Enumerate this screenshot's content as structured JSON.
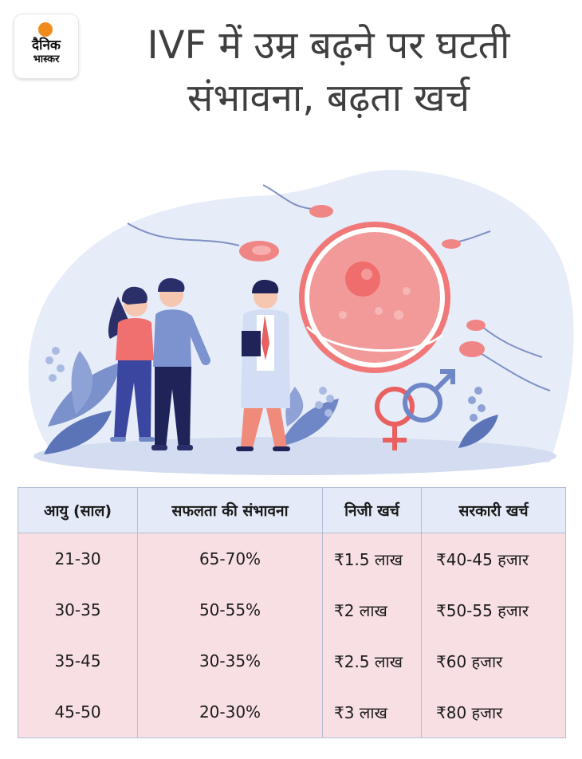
{
  "logo": {
    "line1": "दैनिक",
    "line2": "भास्कर"
  },
  "title": "IVF में उम्र बढ़ने पर घटती संभावना, बढ़ता खर्च",
  "table": {
    "headers": [
      "आयु (साल)",
      "सफलता की संभावना",
      "निजी खर्च",
      "सरकारी खर्च"
    ],
    "rows": [
      [
        "21-30",
        "65-70%",
        "₹1.5 लाख",
        "₹40-45 हजार"
      ],
      [
        "30-35",
        "50-55%",
        "₹2 लाख",
        "₹50-55 हजार"
      ],
      [
        "35-45",
        "30-35%",
        "₹2.5 लाख",
        "₹60 हजार"
      ],
      [
        "45-50",
        "20-30%",
        "₹3 लाख",
        "₹80 हजार"
      ]
    ]
  },
  "colors": {
    "header_bg": "#e4eaf7",
    "row_bg": "#f8dfe4",
    "title": "#3f3f3f",
    "logo_sun": "#f08a1c"
  }
}
